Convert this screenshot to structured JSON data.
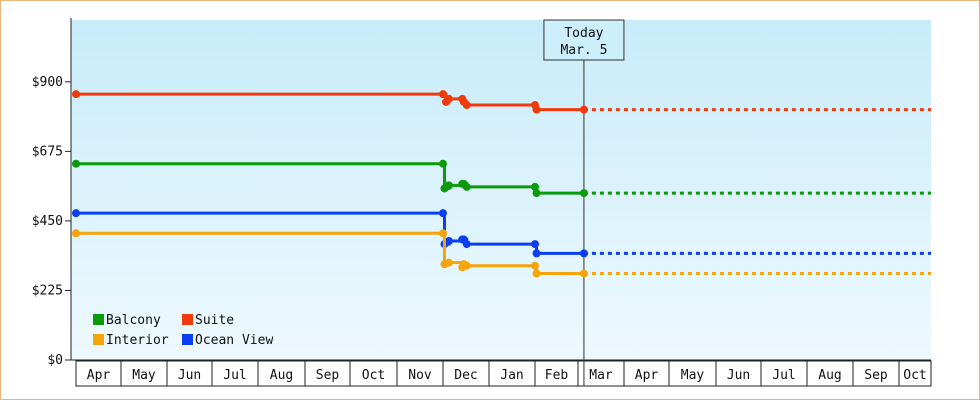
{
  "chart_data": {
    "type": "line",
    "ylim": [
      0,
      1100
    ],
    "y_ticks": [
      {
        "value": 0,
        "label": "$0"
      },
      {
        "value": 225,
        "label": "$225"
      },
      {
        "value": 450,
        "label": "$450"
      },
      {
        "value": 675,
        "label": "$675"
      },
      {
        "value": 900,
        "label": "$900"
      }
    ],
    "x_labels": [
      "Apr",
      "May",
      "Jun",
      "Jul",
      "Aug",
      "Sep",
      "Oct",
      "Nov",
      "Dec",
      "Jan",
      "Feb",
      "Mar",
      "Apr",
      "May",
      "Jun",
      "Jul",
      "Aug",
      "Sep",
      "Oct"
    ],
    "today": {
      "line1": "Today",
      "line2": "Mar. 5"
    },
    "step": true,
    "projection_style": "dotted after Today",
    "background": {
      "top": "#c8ecfa",
      "bottom": "#eef9fe"
    },
    "legend": [
      {
        "name": "Balcony",
        "color": "#0a9a0a"
      },
      {
        "name": "Suite",
        "color": "#f03a0c"
      },
      {
        "name": "Interior",
        "color": "#f5a40c"
      },
      {
        "name": "Ocean View",
        "color": "#0a3ef0"
      }
    ],
    "series": [
      {
        "name": "Suite",
        "color": "#f03a0c",
        "points": [
          [
            "Apr 1",
            860
          ],
          [
            "Dec 1",
            860
          ],
          [
            "Dec 3",
            835
          ],
          [
            "Dec 5",
            845
          ],
          [
            "Dec 14",
            845
          ],
          [
            "Dec 15",
            835
          ],
          [
            "Dec 17",
            825
          ],
          [
            "Feb 1",
            825
          ],
          [
            "Feb 2",
            810
          ],
          [
            "Mar 5",
            810
          ]
        ]
      },
      {
        "name": "Balcony",
        "color": "#0a9a0a",
        "points": [
          [
            "Apr 1",
            635
          ],
          [
            "Dec 1",
            635
          ],
          [
            "Dec 2",
            555
          ],
          [
            "Dec 5",
            565
          ],
          [
            "Dec 14",
            570
          ],
          [
            "Dec 15",
            570
          ],
          [
            "Dec 17",
            560
          ],
          [
            "Feb 1",
            560
          ],
          [
            "Feb 2",
            540
          ],
          [
            "Mar 5",
            540
          ]
        ]
      },
      {
        "name": "Ocean View",
        "color": "#0a3ef0",
        "points": [
          [
            "Apr 1",
            475
          ],
          [
            "Dec 1",
            475
          ],
          [
            "Dec 2",
            375
          ],
          [
            "Dec 5",
            385
          ],
          [
            "Dec 14",
            390
          ],
          [
            "Dec 15",
            390
          ],
          [
            "Dec 17",
            375
          ],
          [
            "Feb 1",
            375
          ],
          [
            "Feb 2",
            345
          ],
          [
            "Mar 5",
            345
          ]
        ]
      },
      {
        "name": "Interior",
        "color": "#f5a40c",
        "points": [
          [
            "Apr 1",
            410
          ],
          [
            "Dec 1",
            410
          ],
          [
            "Dec 2",
            310
          ],
          [
            "Dec 5",
            315
          ],
          [
            "Dec 14",
            300
          ],
          [
            "Dec 15",
            310
          ],
          [
            "Dec 17",
            305
          ],
          [
            "Feb 1",
            305
          ],
          [
            "Feb 2",
            280
          ],
          [
            "Mar 5",
            280
          ]
        ]
      }
    ]
  }
}
